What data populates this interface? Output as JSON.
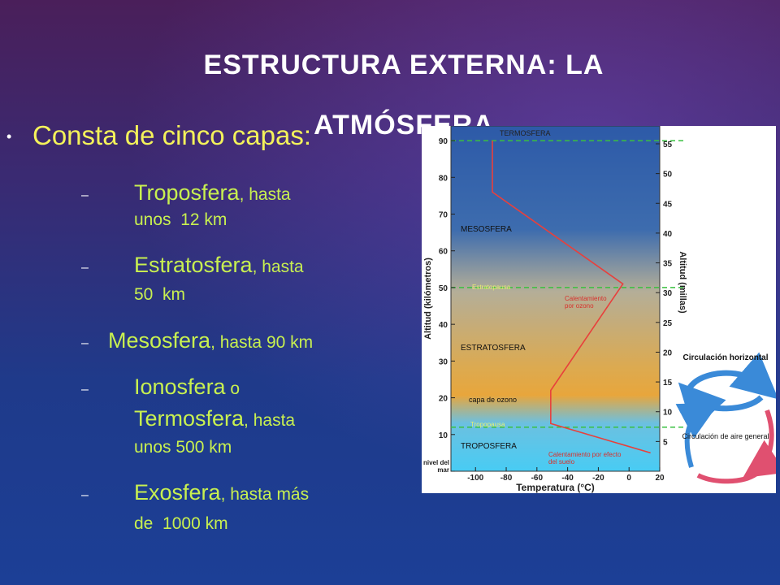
{
  "title": "ESTRUCTURA EXTERNA:  LA ATMÓSFERA",
  "bullet": "Consta de cinco capas:",
  "items": [
    {
      "lines": [
        {
          "big": "Troposfera",
          "small": ", hasta"
        },
        {
          "small": "unos  12 km"
        }
      ]
    },
    {
      "lines": [
        {
          "big": "Estratosfera",
          "small": ", hasta"
        },
        {
          "small": "50  km"
        }
      ]
    },
    {
      "lines": [
        {
          "big": "Mesosfera",
          "small": ", hasta 90 km"
        }
      ]
    },
    {
      "lines": [
        {
          "big": "Ionosfera",
          "small": " o"
        },
        {
          "big": "Termosfera",
          "small": ", hasta"
        },
        {
          "small": "unos 500 km"
        }
      ]
    },
    {
      "lines": [
        {
          "big": "Exosfera",
          "small": ", hasta más"
        },
        {
          "small": "de  1000 km"
        }
      ]
    }
  ],
  "figure": {
    "x_label": "Temperatura (°C)",
    "y_label": "Altitud (kilómetros)",
    "y2_label": "Altitud (millas)",
    "xlim": [
      -116,
      20
    ],
    "xticks": [
      -100,
      -80,
      -60,
      -40,
      -20,
      0,
      20
    ],
    "ylim": [
      0,
      94
    ],
    "yticks": [
      {
        "value": 0,
        "label": "nivel del mar"
      },
      10,
      20,
      30,
      40,
      50,
      60,
      70,
      80,
      90
    ],
    "y2lim": [
      0,
      58
    ],
    "y2ticks": [
      5,
      10,
      15,
      20,
      25,
      30,
      35,
      40,
      45,
      50,
      55
    ],
    "boundaries": [
      90,
      50,
      12
    ],
    "profile": {
      "color": "#e8403c",
      "altitude": [
        90,
        76,
        51,
        22,
        13,
        5
      ],
      "temperature": [
        -89,
        -89,
        -4,
        -51,
        -51,
        14
      ]
    },
    "labels": {
      "thermosphere": "TERMOSFERA",
      "mesosphere": "MESOSFERA",
      "stratopause": "Estratopausa",
      "ozone_heating": "Calentamiento por ozono",
      "stratosphere": "ESTRATOSFERA",
      "ozone_layer": "capa de ozono",
      "tropopause": "Tropopausa",
      "troposphere": "TROPOSFERA",
      "ground_heating": "Calentamiento por efecto del suelo",
      "horizontal": "Circulación horizontal",
      "general": "Circulación de aire general"
    }
  }
}
